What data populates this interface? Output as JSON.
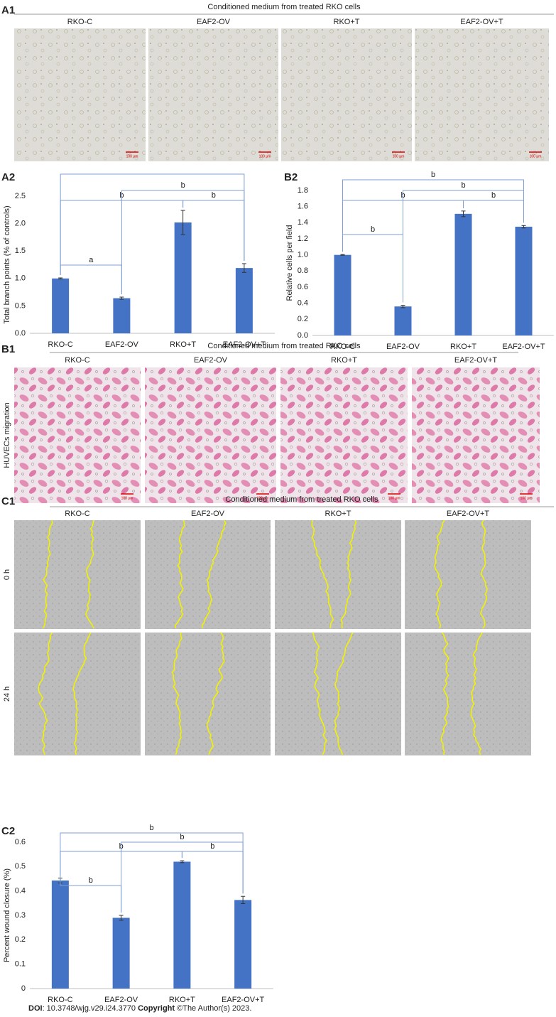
{
  "panels": {
    "A1": {
      "label": "A1",
      "header": "Conditioned medium from treated RKO cells",
      "columns": [
        "RKO-C",
        "EAF2-OV",
        "RKO+T",
        "EAF2-OV+T"
      ],
      "scale_bar": "100 μm"
    },
    "B1": {
      "label": "B1",
      "header": "Conditioned medium from treated RKO cells",
      "columns": [
        "RKO-C",
        "EAF2-OV",
        "RKO+T",
        "EAF2-OV+T"
      ],
      "row_label": "HUVECs migration",
      "scale_bar": "100 μm"
    },
    "C1": {
      "label": "C1",
      "header": "Conditioned medium from treated RKO cells",
      "columns": [
        "RKO-C",
        "EAF2-OV",
        "RKO+T",
        "EAF2-OV+T"
      ],
      "rows": [
        "0 h",
        "24 h"
      ]
    }
  },
  "chart_data": [
    {
      "type": "bar",
      "panel_label": "A2",
      "y_label": "Total branch points (% of controls)",
      "color": "#4472c4",
      "categories": [
        "RKO-C",
        "EAF2-OV",
        "RKO+T",
        "EAF2-OV+T"
      ],
      "values": [
        1.0,
        0.64,
        2.02,
        1.19
      ],
      "errors": [
        0.01,
        0.02,
        0.22,
        0.08
      ],
      "ylim": [
        0,
        2.5
      ],
      "yticks": [
        {
          "value": 0,
          "label": "0.0"
        },
        0.5,
        {
          "value": 1,
          "label": "1.0"
        },
        1.5,
        {
          "value": 2,
          "label": "2.0"
        },
        2.5
      ],
      "brackets": [
        {
          "from": 0,
          "to": 1,
          "label": "a"
        },
        {
          "from": 0,
          "to": 2,
          "label": "b"
        },
        {
          "from": 2,
          "to": 3,
          "label": "b"
        },
        {
          "from": 1,
          "to": 3,
          "label": "b"
        },
        {
          "from": 0,
          "to": 3
        }
      ]
    },
    {
      "type": "bar",
      "panel_label": "B2",
      "y_label": "Relative cells per field",
      "color": "#4472c4",
      "categories": [
        "RKO-C",
        "EAF2-OV",
        "RKO+T",
        "EAF2-OV+T"
      ],
      "values": [
        1.0,
        0.36,
        1.51,
        1.35
      ],
      "errors": [
        0.005,
        0.015,
        0.035,
        0.015
      ],
      "ylim": [
        0,
        1.8
      ],
      "yticks": [
        {
          "value": 0,
          "label": "0.0"
        },
        0.2,
        0.4,
        0.6,
        0.8,
        {
          "value": 1,
          "label": "1.0"
        },
        1.2,
        1.4,
        1.6,
        1.8
      ],
      "brackets": [
        {
          "from": 0,
          "to": 1,
          "label": "b"
        },
        {
          "from": 0,
          "to": 2,
          "label": "b"
        },
        {
          "from": 2,
          "to": 3,
          "label": "b"
        },
        {
          "from": 1,
          "to": 3,
          "label": "b"
        },
        {
          "from": 0,
          "to": 3,
          "label": "b"
        }
      ]
    },
    {
      "type": "bar",
      "panel_label": "C2",
      "y_label": "Percent wound closure (%)",
      "color": "#4472c4",
      "categories": [
        "RKO-C",
        "EAF2-OV",
        "RKO+T",
        "EAF2-OV+T"
      ],
      "values": [
        0.443,
        0.29,
        0.52,
        0.363
      ],
      "errors": [
        0.01,
        0.01,
        0.004,
        0.015
      ],
      "ylim": [
        0,
        0.6
      ],
      "yticks": [
        0,
        0.1,
        0.2,
        0.3,
        0.4,
        0.5,
        0.6
      ],
      "brackets": [
        {
          "from": 0,
          "to": 1,
          "label": "b"
        },
        {
          "from": 0,
          "to": 2,
          "label": "b"
        },
        {
          "from": 2,
          "to": 3,
          "label": "b"
        },
        {
          "from": 1,
          "to": 3,
          "label": "b"
        },
        {
          "from": 0,
          "to": 3,
          "label": "b"
        }
      ]
    }
  ],
  "footer": {
    "doi_label": "DOI",
    "doi": ": 10.3748/wjg.v29.i24.3770 ",
    "copyright_label": "Copyright",
    "copyright": " ©The Author(s) 2023."
  }
}
